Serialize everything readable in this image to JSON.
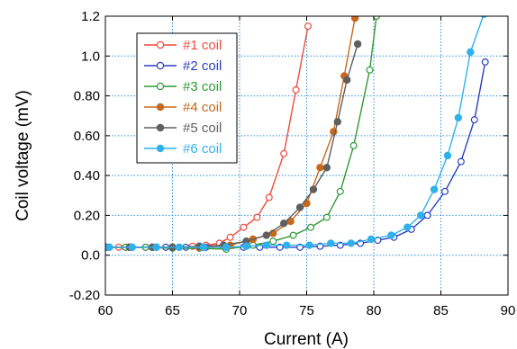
{
  "chart_data": {
    "type": "line",
    "xlabel": "Current (A)",
    "ylabel": "Coil voltage (mV)",
    "xlim": [
      60,
      90
    ],
    "ylim": [
      -0.2,
      1.2
    ],
    "x_ticks": [
      "60",
      "65",
      "70",
      "75",
      "80",
      "85",
      "90"
    ],
    "y_ticks": [
      "-0.20",
      "0.0",
      "0.20",
      "0.40",
      "0.60",
      "0.80",
      "1.0",
      "1.2"
    ],
    "x_tick_values": [
      60,
      65,
      70,
      75,
      80,
      85,
      90
    ],
    "y_tick_values": [
      -0.2,
      0,
      0.2,
      0.4,
      0.6,
      0.8,
      1.0,
      1.2
    ],
    "grid": true,
    "legend_position": "top-left",
    "series": [
      {
        "name": "#1 coil",
        "color": "#f04a3c",
        "marker": "open-circle",
        "x": [
          60.0,
          61.0,
          62.0,
          63.5,
          65.0,
          66.5,
          67.5,
          68.5,
          69.3,
          70.3,
          71.3,
          72.2,
          73.3,
          74.2,
          75.1
        ],
        "y": [
          0.04,
          0.04,
          0.04,
          0.04,
          0.04,
          0.045,
          0.05,
          0.06,
          0.09,
          0.14,
          0.19,
          0.29,
          0.51,
          0.83,
          1.15
        ]
      },
      {
        "name": "#2 coil",
        "color": "#2a3fc0",
        "marker": "open-circle",
        "x": [
          60.2,
          61.5,
          63.0,
          64.5,
          66.0,
          67.5,
          69.0,
          70.3,
          71.5,
          73.0,
          74.5,
          76.0,
          77.5,
          79.0,
          80.3,
          81.5,
          82.8,
          84.0,
          85.3,
          86.5,
          87.5,
          88.3
        ],
        "y": [
          0.04,
          0.04,
          0.04,
          0.04,
          0.04,
          0.04,
          0.04,
          0.04,
          0.04,
          0.04,
          0.04,
          0.045,
          0.05,
          0.06,
          0.075,
          0.09,
          0.13,
          0.2,
          0.32,
          0.47,
          0.68,
          0.97
        ]
      },
      {
        "name": "#3 coil",
        "color": "#2f9a35",
        "marker": "open-circle",
        "x": [
          60.0,
          61.5,
          63.0,
          65.0,
          67.0,
          69.0,
          71.0,
          72.5,
          74.0,
          75.3,
          76.5,
          77.5,
          78.5,
          79.7,
          80.2
        ],
        "y": [
          0.04,
          0.04,
          0.04,
          0.035,
          0.035,
          0.03,
          0.05,
          0.07,
          0.1,
          0.14,
          0.19,
          0.32,
          0.55,
          0.93,
          1.2
        ]
      },
      {
        "name": "#4 coil",
        "color": "#c8681c",
        "marker": "filled-circle",
        "x": [
          60.0,
          61.8,
          63.8,
          65.0,
          67.0,
          69.3,
          71.0,
          72.5,
          73.8,
          75.0,
          76.0,
          77.0,
          77.8,
          78.6
        ],
        "y": [
          0.04,
          0.04,
          0.04,
          0.04,
          0.04,
          0.05,
          0.08,
          0.11,
          0.17,
          0.26,
          0.44,
          0.62,
          0.9,
          1.19
        ]
      },
      {
        "name": "#5 coil",
        "color": "#5f5f5f",
        "marker": "filled-circle",
        "x": [
          60.0,
          61.8,
          63.5,
          65.0,
          67.0,
          68.8,
          70.5,
          72.0,
          73.3,
          74.5,
          75.5,
          76.5,
          77.3,
          78.0,
          78.8
        ],
        "y": [
          0.04,
          0.04,
          0.04,
          0.04,
          0.045,
          0.05,
          0.07,
          0.1,
          0.16,
          0.24,
          0.33,
          0.44,
          0.67,
          0.88,
          1.06
        ]
      },
      {
        "name": "#6 coil",
        "color": "#2fb1ec",
        "marker": "filled-circle",
        "x": [
          60.3,
          62.0,
          63.8,
          65.5,
          67.3,
          69.0,
          70.5,
          72.0,
          73.5,
          75.2,
          76.8,
          78.3,
          79.8,
          81.3,
          82.5,
          83.5,
          84.5,
          85.5,
          86.3,
          87.2,
          88.2
        ],
        "y": [
          0.04,
          0.04,
          0.04,
          0.04,
          0.04,
          0.04,
          0.045,
          0.05,
          0.05,
          0.05,
          0.06,
          0.06,
          0.08,
          0.1,
          0.14,
          0.2,
          0.33,
          0.5,
          0.69,
          1.02,
          1.21
        ]
      }
    ]
  }
}
